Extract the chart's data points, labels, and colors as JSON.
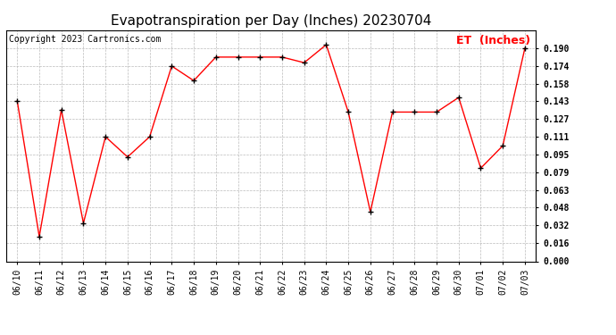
{
  "title": "Evapotranspiration per Day (Inches) 20230704",
  "copyright": "Copyright 2023 Cartronics.com",
  "legend_label": "ET  (Inches)",
  "dates": [
    "06/10",
    "06/11",
    "06/12",
    "06/13",
    "06/14",
    "06/15",
    "06/16",
    "06/17",
    "06/18",
    "06/19",
    "06/20",
    "06/21",
    "06/22",
    "06/23",
    "06/24",
    "06/25",
    "06/26",
    "06/27",
    "06/28",
    "06/29",
    "06/30",
    "07/01",
    "07/02",
    "07/03"
  ],
  "values": [
    0.143,
    0.022,
    0.135,
    0.034,
    0.111,
    0.093,
    0.111,
    0.174,
    0.161,
    0.182,
    0.182,
    0.182,
    0.182,
    0.177,
    0.193,
    0.133,
    0.044,
    0.133,
    0.133,
    0.133,
    0.146,
    0.083,
    0.103,
    0.19
  ],
  "line_color": "red",
  "marker_color": "black",
  "background_color": "#ffffff",
  "grid_color": "#aaaaaa",
  "ylim": [
    0.0,
    0.206
  ],
  "yticks": [
    0.0,
    0.016,
    0.032,
    0.048,
    0.063,
    0.079,
    0.095,
    0.111,
    0.127,
    0.143,
    0.158,
    0.174,
    0.19
  ],
  "title_fontsize": 11,
  "copyright_fontsize": 7,
  "legend_fontsize": 9,
  "tick_fontsize": 7
}
